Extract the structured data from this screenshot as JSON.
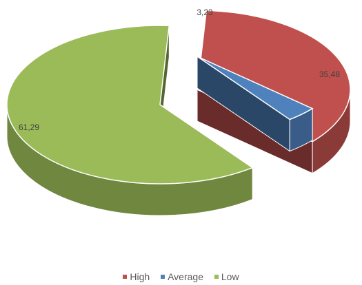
{
  "chart_data": {
    "type": "pie",
    "style": "3d-exploded",
    "categories": [
      "High",
      "Average",
      "Low"
    ],
    "values": [
      35.48,
      3.23,
      61.29
    ],
    "data_labels": [
      "35,48",
      "3,23",
      "61,29"
    ],
    "colors": {
      "High": "#c0504d",
      "Average": "#4f81bd",
      "Low": "#9bbb59"
    },
    "legend_placement": "bottom"
  }
}
